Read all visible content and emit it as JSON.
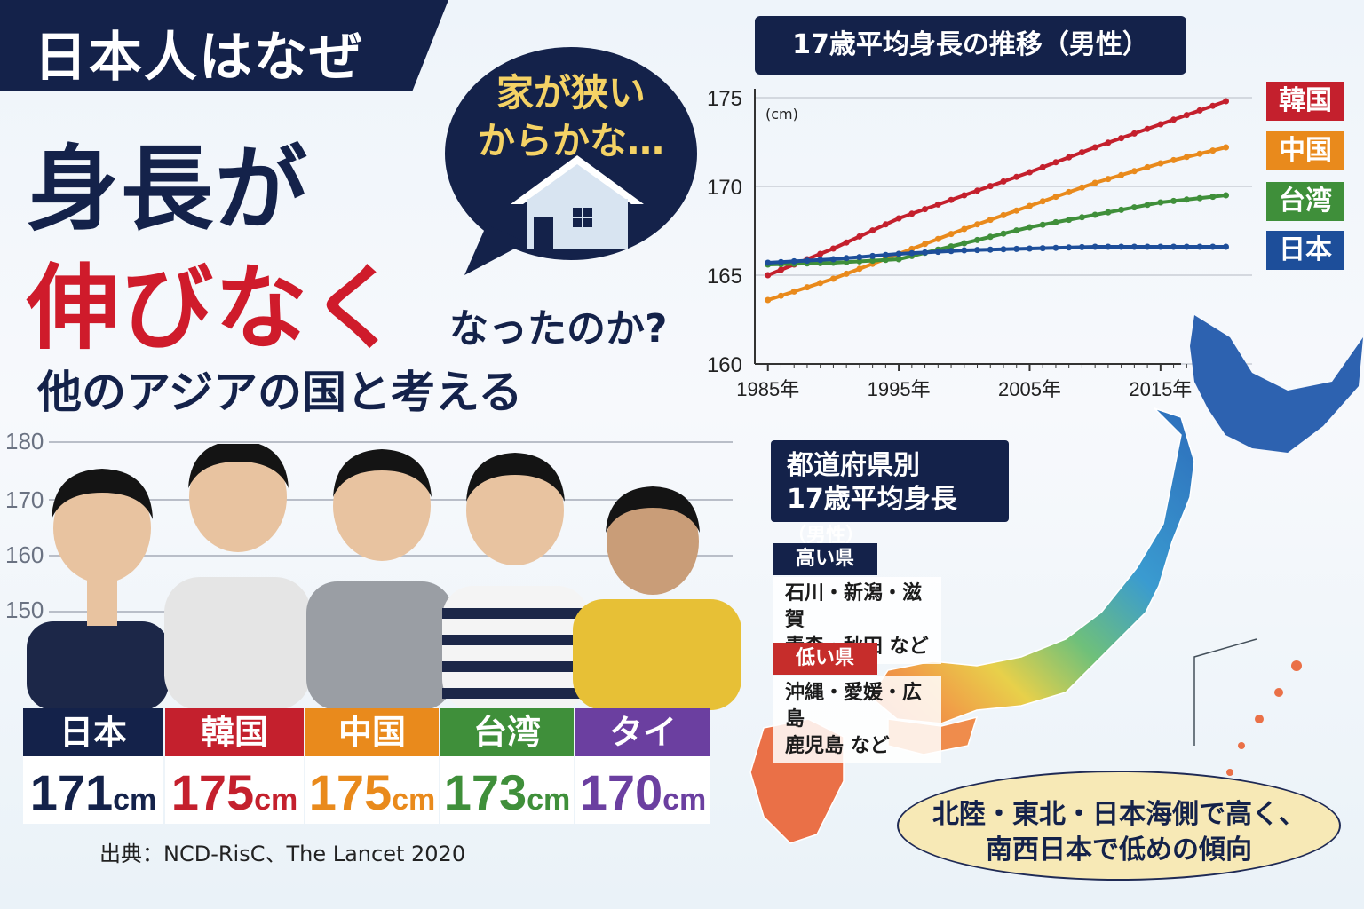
{
  "headline": {
    "line1": "日本人はなぜ",
    "line2": "身長が",
    "line3": "伸びなく",
    "line3_tail": "なったのか?",
    "subtitle": "他のアジアの国と考える"
  },
  "speech_bubble": {
    "line1": "家が狭い",
    "line2": "からかな…",
    "icon": "house-icon"
  },
  "ruler": {
    "ticks": [
      "180",
      "170",
      "160",
      "150"
    ]
  },
  "countries": [
    {
      "name": "日本",
      "height": "171",
      "unit": "cm",
      "color": "#14224a",
      "shirt": "navy"
    },
    {
      "name": "韓国",
      "height": "175",
      "unit": "cm",
      "color": "#c4202d",
      "shirt": "gray hoodie"
    },
    {
      "name": "中国",
      "height": "175",
      "unit": "cm",
      "color": "#e98a1c",
      "shirt": "gray"
    },
    {
      "name": "台湾",
      "height": "173",
      "unit": "cm",
      "color": "#3f8f3a",
      "shirt": "striped"
    },
    {
      "name": "タイ",
      "height": "170",
      "unit": "cm",
      "color": "#6b3fa0",
      "shirt": "yellow"
    }
  ],
  "source": "出典：NCD-RisC、The Lancet 2020",
  "chart_data": {
    "type": "line",
    "title": "17歳平均身長の推移（男性）",
    "ylabel": "(cm)",
    "ylim": [
      160,
      175
    ],
    "yticks": [
      "175",
      "170",
      "165",
      "160"
    ],
    "xticks": [
      "1985年",
      "1995年",
      "2005年",
      "2015年"
    ],
    "x": [
      1985,
      1990,
      1995,
      2000,
      2005,
      2010,
      2015,
      2020
    ],
    "series": [
      {
        "name": "韓国",
        "color": "#c4202d",
        "values": [
          165.0,
          166.5,
          168.2,
          169.5,
          170.8,
          172.2,
          173.5,
          174.8
        ]
      },
      {
        "name": "中国",
        "color": "#e98a1c",
        "values": [
          163.6,
          164.8,
          166.2,
          167.6,
          168.9,
          170.2,
          171.3,
          172.2
        ]
      },
      {
        "name": "台湾",
        "color": "#3f8f3a",
        "values": [
          165.6,
          165.7,
          165.9,
          166.8,
          167.7,
          168.4,
          169.1,
          169.5
        ]
      },
      {
        "name": "日本",
        "color": "#1d4e9a",
        "values": [
          165.7,
          165.9,
          166.2,
          166.4,
          166.5,
          166.6,
          166.6,
          166.6
        ]
      }
    ]
  },
  "prefecture": {
    "title_line1": "都道府県別",
    "title_line2": "17歳平均身長",
    "title_suffix": "（男性）",
    "high_label": "高い県",
    "high_line1": "石川・新潟・滋賀",
    "high_line2": "青森・秋田 など",
    "low_label": "低い県",
    "low_line1": "沖縄・愛媛・広島",
    "low_line2": "鹿児島 など",
    "note_line1": "北陸・東北・日本海側で高く、",
    "note_line2": "南西日本で低めの傾向"
  }
}
